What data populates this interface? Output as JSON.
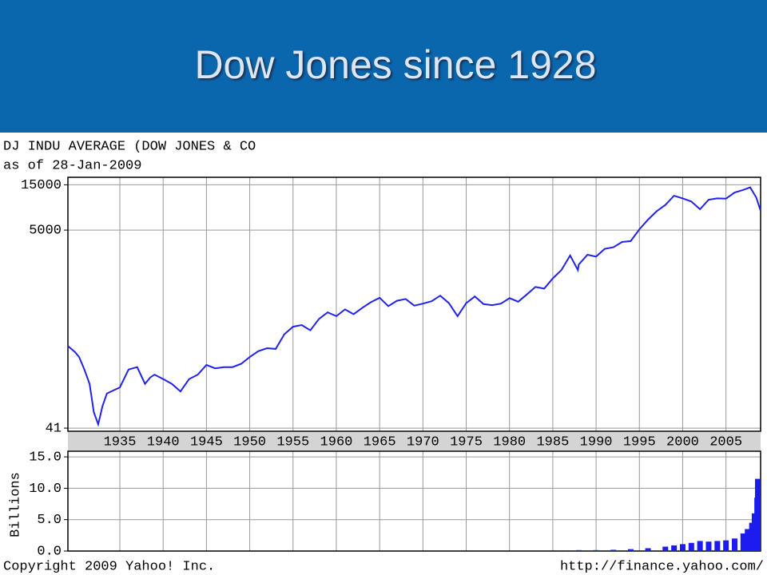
{
  "title": "Dow Jones since 1928",
  "footer": {
    "copyright": "Copyright 2009 Yahoo! Inc.",
    "source": "http://finance.yahoo.com/"
  },
  "chart_data": [
    {
      "type": "line",
      "title": "DJ INDU AVERAGE (DOW JONES & CO",
      "subtitle": "as of 28-Jan-2009",
      "log_scale": true,
      "grid": true,
      "color": "#2222ee",
      "xlim": [
        1929,
        2009
      ],
      "xticks": [
        1935,
        1940,
        1945,
        1950,
        1955,
        1960,
        1965,
        1970,
        1975,
        1980,
        1985,
        1990,
        1995,
        2000,
        2005
      ],
      "ylim": [
        38,
        18000
      ],
      "yticks": [
        41,
        5000,
        15000
      ],
      "x": [
        1929,
        1929.8,
        1930.3,
        1930.9,
        1931.5,
        1932,
        1932.5,
        1933,
        1933.5,
        1934,
        1935,
        1936,
        1937,
        1937.9,
        1938.5,
        1939,
        1940,
        1941,
        1942,
        1943,
        1944,
        1945,
        1946,
        1947,
        1948,
        1949,
        1950,
        1951,
        1952,
        1953,
        1954,
        1955,
        1956,
        1957,
        1958,
        1959,
        1960,
        1961,
        1962,
        1963,
        1964,
        1965,
        1966,
        1967,
        1968,
        1969,
        1970,
        1971,
        1972,
        1973,
        1974,
        1975,
        1976,
        1977,
        1978,
        1979,
        1980,
        1981,
        1982,
        1983,
        1984,
        1985,
        1986,
        1987,
        1987.9,
        1988,
        1989,
        1990,
        1991,
        1992,
        1993,
        1994,
        1995,
        1996,
        1997,
        1998,
        1999,
        2000,
        2001,
        2002,
        2003,
        2004,
        2005,
        2006,
        2007,
        2007.8,
        2008.5,
        2009
      ],
      "values": [
        300,
        260,
        230,
        170,
        120,
        60,
        45,
        70,
        95,
        100,
        110,
        170,
        180,
        120,
        140,
        150,
        135,
        120,
        100,
        135,
        150,
        190,
        175,
        180,
        180,
        195,
        230,
        265,
        285,
        280,
        400,
        480,
        500,
        440,
        580,
        680,
        620,
        730,
        650,
        760,
        870,
        970,
        790,
        900,
        940,
        800,
        840,
        890,
        1020,
        850,
        620,
        850,
        1000,
        830,
        810,
        840,
        960,
        880,
        1050,
        1260,
        1210,
        1550,
        1900,
        2700,
        1900,
        2170,
        2750,
        2630,
        3170,
        3300,
        3750,
        3830,
        5100,
        6450,
        7900,
        9200,
        11500,
        10800,
        10000,
        8300,
        10450,
        10800,
        10700,
        12460,
        13260,
        14100,
        11000,
        8000
      ]
    },
    {
      "type": "bar",
      "y_label": "Billions",
      "grid": true,
      "color": "#1c1cf0",
      "xlim": [
        1929,
        2009
      ],
      "ylim": [
        0,
        15.9
      ],
      "yticks": [
        {
          "value": 0,
          "label": "0.0"
        },
        {
          "value": 5,
          "label": "5.0"
        },
        {
          "value": 10,
          "label": "10.0"
        },
        {
          "value": 15,
          "label": "15.0"
        }
      ],
      "x": [
        1986,
        1988,
        1990,
        1992,
        1994,
        1996,
        1998,
        1999,
        2000,
        2001,
        2002,
        2003,
        2004,
        2005,
        2006,
        2007,
        2007.5,
        2008,
        2008.3,
        2008.6,
        2008.8,
        2009
      ],
      "values": [
        0.1,
        0.15,
        0.15,
        0.2,
        0.3,
        0.45,
        0.7,
        0.9,
        1.1,
        1.3,
        1.6,
        1.5,
        1.6,
        1.7,
        2.0,
        2.8,
        3.5,
        4.5,
        6.0,
        8.5,
        11.5,
        7.0
      ]
    }
  ]
}
